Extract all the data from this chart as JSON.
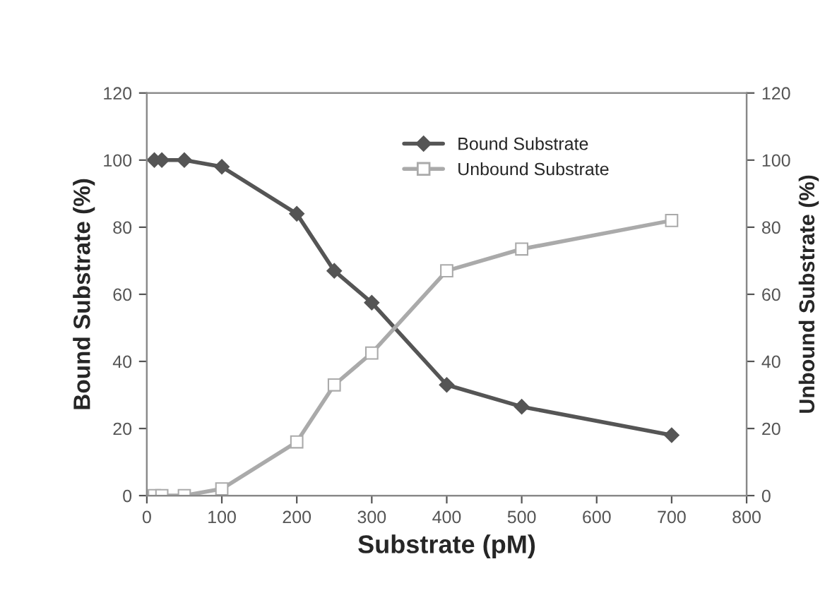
{
  "chart_data": {
    "type": "line",
    "xlabel": "Substrate (pM)",
    "ylabel": "Bound Substrate (%)",
    "y2label": "Unbound Substrate (%)",
    "x": [
      10,
      20,
      50,
      100,
      200,
      250,
      300,
      400,
      500,
      700
    ],
    "series": [
      {
        "name": "Bound Substrate",
        "color": "#555555",
        "marker": "diamond",
        "values": [
          100,
          100,
          100,
          98,
          84,
          67,
          57.5,
          33,
          26.5,
          18
        ]
      },
      {
        "name": "Unbound Substrate",
        "color": "#aaaaaa",
        "marker": "square",
        "values": [
          0,
          0,
          0,
          2,
          16,
          33,
          42.5,
          67,
          73.5,
          82
        ]
      }
    ],
    "xlim": [
      0,
      800
    ],
    "xticks": [
      0,
      100,
      200,
      300,
      400,
      500,
      600,
      700,
      800
    ],
    "ylim": [
      0,
      120
    ],
    "yticks": [
      0,
      20,
      40,
      60,
      80,
      100,
      120
    ],
    "y2lim": [
      0,
      120
    ],
    "y2ticks": [
      0,
      20,
      40,
      60,
      80,
      100,
      120
    ],
    "grid": false,
    "legend": "top",
    "line_style": "solid"
  }
}
